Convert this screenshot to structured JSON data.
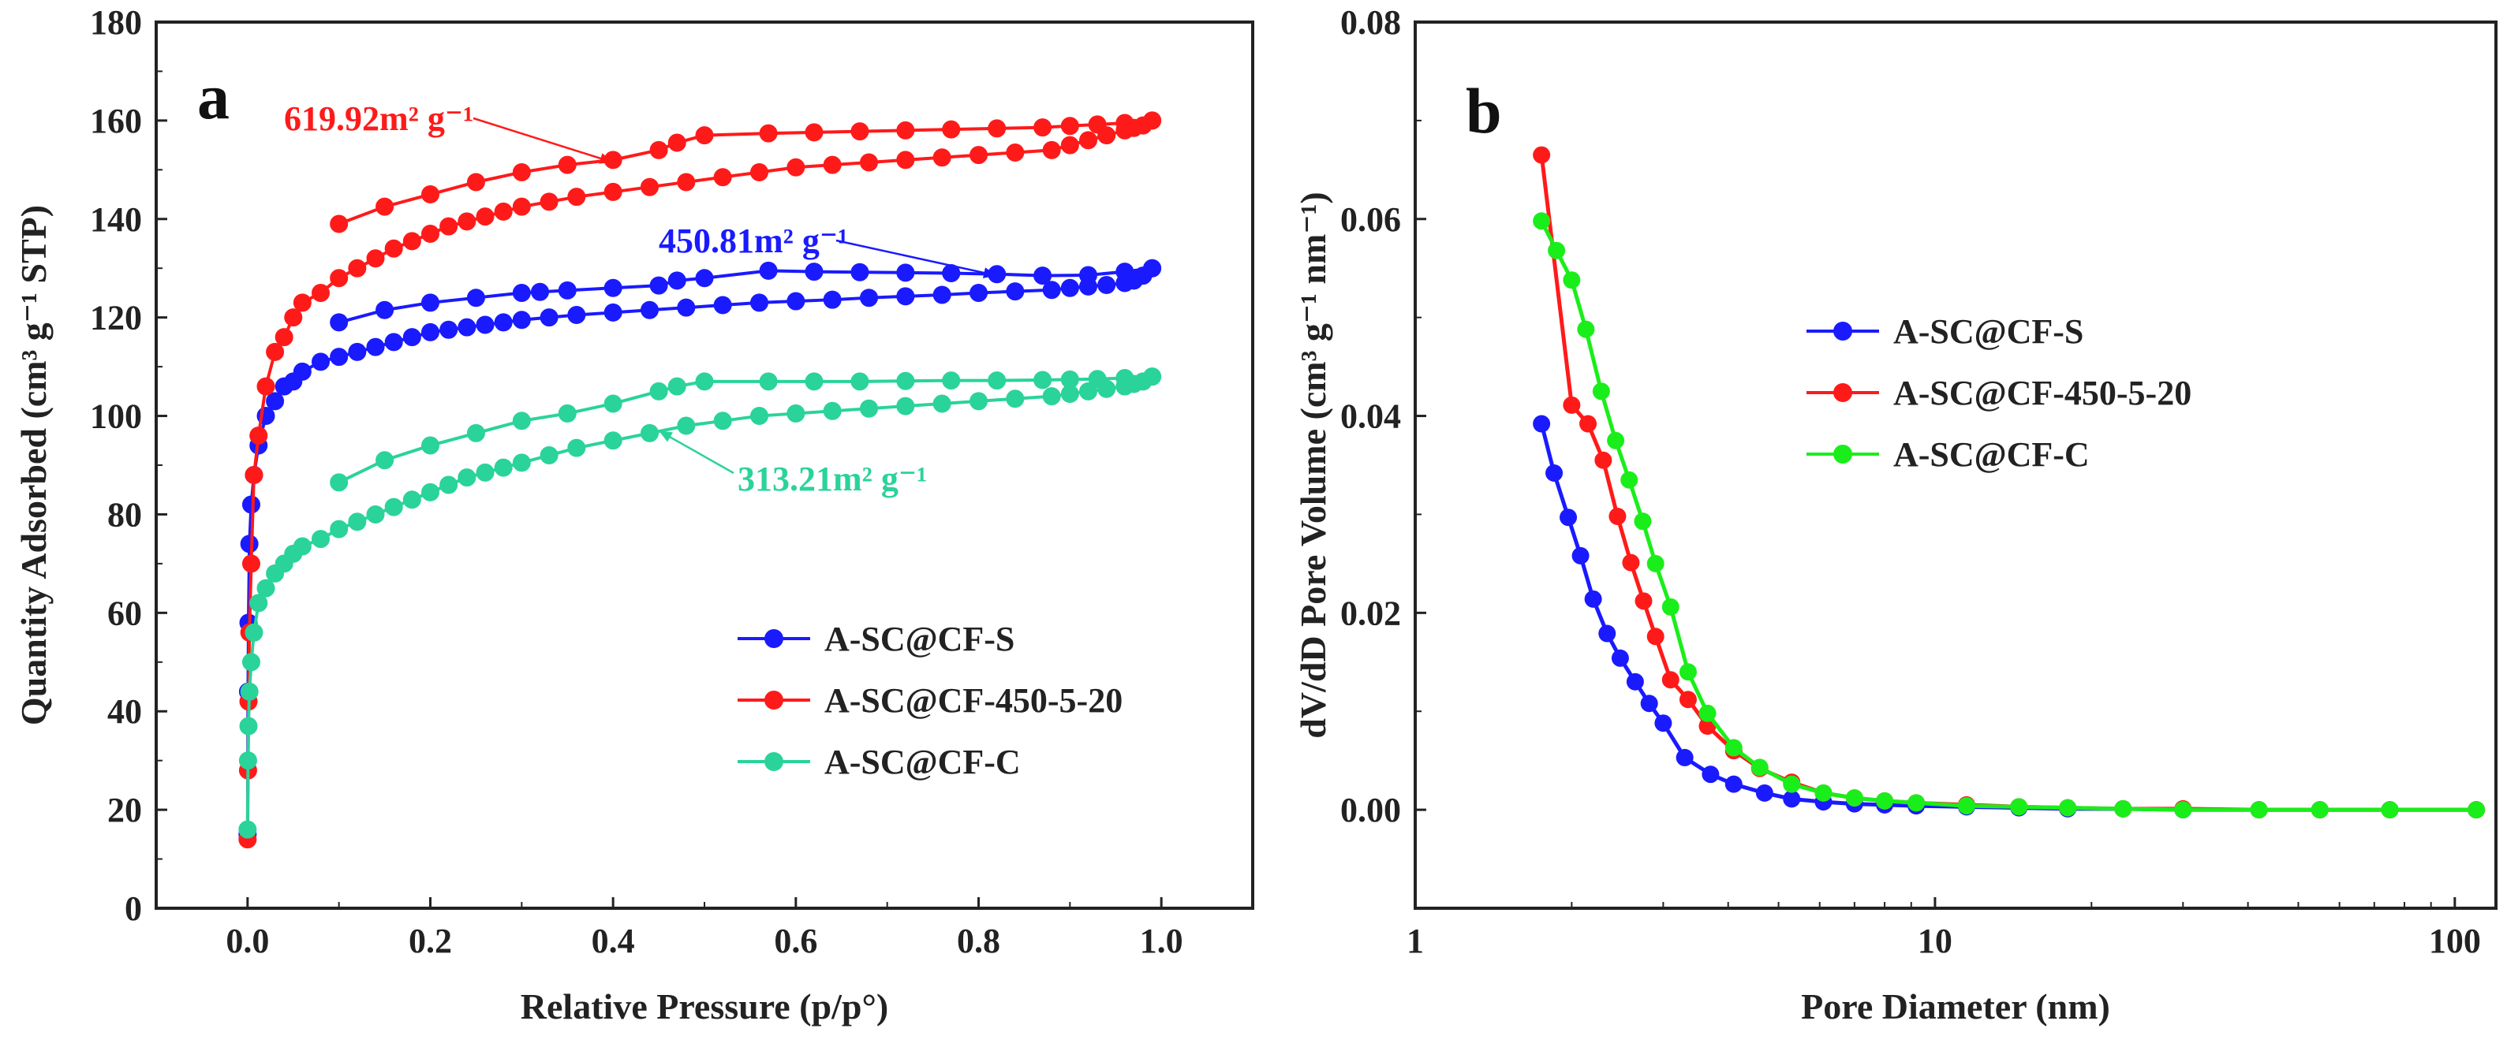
{
  "chart_data": [
    {
      "panel": "a",
      "type": "line",
      "xlabel": "Relative Pressure (p/p°)",
      "ylabel": "Quantity Adsorbed (cm³ g⁻¹ STP)",
      "xlim": [
        -0.1,
        1.1
      ],
      "ylim": [
        0,
        180
      ],
      "xticks": [
        0.0,
        0.2,
        0.4,
        0.6,
        0.8,
        1.0
      ],
      "xtick_labels": [
        "0.0",
        "0.2",
        "0.4",
        "0.6",
        "0.8",
        "1.0"
      ],
      "yticks": [
        0,
        20,
        40,
        60,
        80,
        100,
        120,
        140,
        160,
        180
      ],
      "ytick_labels": [
        "0",
        "20",
        "40",
        "60",
        "80",
        "100",
        "120",
        "140",
        "160",
        "180"
      ],
      "legend_position": "lower-right",
      "series": [
        {
          "name": "A-SC@CF-S",
          "color": "#1a1aff",
          "adsorption": {
            "x": [
              0.0,
              0.0005,
              0.001,
              0.002,
              0.004,
              0.007,
              0.012,
              0.02,
              0.03,
              0.04,
              0.05,
              0.06,
              0.08,
              0.1,
              0.12,
              0.14,
              0.16,
              0.18,
              0.2,
              0.22,
              0.24,
              0.26,
              0.28,
              0.3,
              0.33,
              0.36,
              0.4,
              0.44,
              0.48,
              0.52,
              0.56,
              0.6,
              0.64,
              0.68,
              0.72,
              0.76,
              0.8,
              0.84,
              0.88,
              0.9,
              0.92,
              0.94,
              0.96,
              0.97,
              0.98,
              0.99
            ],
            "y": [
              15,
              44,
              58,
              74,
              82,
              88,
              94,
              100,
              103,
              106,
              107,
              109,
              111,
              112,
              113,
              114,
              115,
              116,
              117,
              117.5,
              118,
              118.5,
              119,
              119.5,
              120,
              120.5,
              121,
              121.5,
              122,
              122.5,
              123,
              123.3,
              123.6,
              124,
              124.3,
              124.6,
              125,
              125.3,
              125.6,
              126,
              126.3,
              126.6,
              127,
              127.5,
              128.5,
              130
            ]
          },
          "desorption": {
            "x": [
              0.99,
              0.96,
              0.92,
              0.87,
              0.82,
              0.77,
              0.72,
              0.67,
              0.62,
              0.57,
              0.5,
              0.47,
              0.45,
              0.4,
              0.35,
              0.32,
              0.3,
              0.25,
              0.2,
              0.15,
              0.1
            ],
            "y": [
              130,
              129.3,
              128.6,
              128.5,
              128.8,
              129,
              129.1,
              129.2,
              129.3,
              129.5,
              128,
              127.5,
              126.5,
              126,
              125.5,
              125.2,
              125,
              124,
              123,
              121.5,
              119
            ]
          }
        },
        {
          "name": "A-SC@CF-450-5-20",
          "color": "#ff1a1a",
          "adsorption": {
            "x": [
              0.0,
              0.0005,
              0.001,
              0.002,
              0.004,
              0.007,
              0.012,
              0.02,
              0.03,
              0.04,
              0.05,
              0.06,
              0.08,
              0.1,
              0.12,
              0.14,
              0.16,
              0.18,
              0.2,
              0.22,
              0.24,
              0.26,
              0.28,
              0.3,
              0.33,
              0.36,
              0.4,
              0.44,
              0.48,
              0.52,
              0.56,
              0.6,
              0.64,
              0.68,
              0.72,
              0.76,
              0.8,
              0.84,
              0.88,
              0.9,
              0.92,
              0.94,
              0.96,
              0.97,
              0.98,
              0.99
            ],
            "y": [
              14,
              28,
              42,
              56,
              70,
              88,
              96,
              106,
              113,
              116,
              120,
              123,
              125,
              128,
              130,
              132,
              134,
              135.5,
              137,
              138.5,
              139.5,
              140.5,
              141.5,
              142.5,
              143.5,
              144.5,
              145.5,
              146.5,
              147.5,
              148.5,
              149.5,
              150.5,
              151,
              151.5,
              152,
              152.5,
              153,
              153.5,
              154,
              155,
              156,
              157,
              158,
              158.5,
              159,
              160
            ]
          },
          "desorption": {
            "x": [
              0.99,
              0.96,
              0.93,
              0.9,
              0.87,
              0.82,
              0.77,
              0.72,
              0.67,
              0.62,
              0.57,
              0.5,
              0.47,
              0.45,
              0.4,
              0.35,
              0.3,
              0.25,
              0.2,
              0.15,
              0.1
            ],
            "y": [
              160,
              159.5,
              159.2,
              158.9,
              158.6,
              158.4,
              158.2,
              158,
              157.8,
              157.6,
              157.4,
              157,
              155.5,
              154,
              152,
              151,
              149.5,
              147.5,
              145,
              142.5,
              139
            ]
          }
        },
        {
          "name": "A-SC@CF-C",
          "color": "#2ad39a",
          "adsorption": {
            "x": [
              0.0,
              0.0005,
              0.001,
              0.002,
              0.004,
              0.007,
              0.012,
              0.02,
              0.03,
              0.04,
              0.05,
              0.06,
              0.08,
              0.1,
              0.12,
              0.14,
              0.16,
              0.18,
              0.2,
              0.22,
              0.24,
              0.26,
              0.28,
              0.3,
              0.33,
              0.36,
              0.4,
              0.44,
              0.48,
              0.52,
              0.56,
              0.6,
              0.64,
              0.68,
              0.72,
              0.76,
              0.8,
              0.84,
              0.88,
              0.9,
              0.92,
              0.94,
              0.96,
              0.97,
              0.98,
              0.99
            ],
            "y": [
              16,
              30,
              37,
              44,
              50,
              56,
              62,
              65,
              68,
              70,
              72,
              73.5,
              75,
              77,
              78.5,
              80,
              81.5,
              83,
              84.5,
              86,
              87.5,
              88.5,
              89.5,
              90.5,
              92,
              93.5,
              95,
              96.5,
              98,
              99,
              100,
              100.5,
              101,
              101.5,
              102,
              102.5,
              103,
              103.5,
              104,
              104.5,
              105,
              105.5,
              106,
              106.5,
              107,
              108
            ]
          },
          "desorption": {
            "x": [
              0.99,
              0.96,
              0.93,
              0.9,
              0.87,
              0.82,
              0.77,
              0.72,
              0.67,
              0.62,
              0.57,
              0.5,
              0.47,
              0.45,
              0.4,
              0.35,
              0.3,
              0.25,
              0.2,
              0.15,
              0.1
            ],
            "y": [
              108,
              107.7,
              107.5,
              107.4,
              107.3,
              107.2,
              107.2,
              107.1,
              107,
              107,
              107,
              107,
              106,
              105,
              102.5,
              100.5,
              99,
              96.5,
              94,
              91,
              86.5
            ]
          }
        }
      ],
      "annotations": [
        {
          "text": "619.92m² g⁻¹",
          "color": "#ff1a1a",
          "target": [
            0.4,
            151.5
          ]
        },
        {
          "text": "450.81m² g⁻¹",
          "color": "#1a1aff",
          "target": [
            0.82,
            128.5
          ]
        },
        {
          "text": "313.21m² g⁻¹",
          "color": "#2ad39a",
          "target": [
            0.45,
            97
          ]
        }
      ]
    },
    {
      "panel": "b",
      "type": "line",
      "xscale": "log",
      "xlabel": "Pore Diameter (nm)",
      "ylabel": "dV/dD Pore Volume (cm³ g⁻¹ nm⁻¹)",
      "xlim": [
        1,
        120
      ],
      "ylim": [
        -0.01,
        0.08
      ],
      "xticks": [
        1,
        10,
        100
      ],
      "xtick_labels": [
        "1",
        "10",
        "100"
      ],
      "yticks": [
        0.0,
        0.02,
        0.04,
        0.06,
        0.08
      ],
      "ytick_labels": [
        "0.00",
        "0.02",
        "0.04",
        "0.06",
        "0.08"
      ],
      "legend_position": "upper-center",
      "series": [
        {
          "name": "A-SC@CF-S",
          "color": "#1a1aff",
          "x": [
            1.75,
            1.85,
            1.97,
            2.08,
            2.2,
            2.34,
            2.48,
            2.65,
            2.82,
            3.0,
            3.3,
            3.7,
            4.1,
            4.7,
            5.3,
            6.1,
            7.0,
            8.0,
            9.2,
            11.5,
            14.5,
            18,
            23,
            30,
            42,
            55,
            75,
            110
          ],
          "y": [
            0.0392,
            0.0342,
            0.0297,
            0.0258,
            0.0214,
            0.0179,
            0.0154,
            0.013,
            0.0108,
            0.0088,
            0.0053,
            0.0036,
            0.0026,
            0.0017,
            0.0011,
            0.0008,
            0.0006,
            0.0005,
            0.0004,
            0.0003,
            0.0002,
            0.0001,
            0.0001,
            0.0,
            0.0,
            0.0,
            0.0,
            0.0
          ]
        },
        {
          "name": "A-SC@CF-450-5-20",
          "color": "#ff1a1a",
          "x": [
            1.75,
            2.0,
            2.15,
            2.3,
            2.45,
            2.6,
            2.75,
            2.9,
            3.1,
            3.35,
            3.65,
            4.1,
            4.6,
            5.3,
            6.1,
            7.0,
            8.0,
            9.2,
            11.5,
            14.5,
            18,
            23,
            30,
            42,
            55,
            75,
            110
          ],
          "y": [
            0.0665,
            0.0411,
            0.0392,
            0.0355,
            0.0298,
            0.0251,
            0.0212,
            0.0176,
            0.0132,
            0.0112,
            0.0085,
            0.006,
            0.0042,
            0.0028,
            0.0017,
            0.0012,
            0.0009,
            0.0007,
            0.0005,
            0.0003,
            0.0002,
            0.0001,
            0.0001,
            0.0,
            0.0,
            0.0,
            0.0
          ]
        },
        {
          "name": "A-SC@CF-C",
          "color": "#1aee1a",
          "x": [
            1.75,
            1.87,
            2.0,
            2.13,
            2.28,
            2.43,
            2.58,
            2.74,
            2.9,
            3.1,
            3.35,
            3.65,
            4.1,
            4.6,
            5.3,
            6.1,
            7.0,
            8.0,
            9.2,
            11.5,
            14.5,
            18,
            23,
            30,
            42,
            55,
            75,
            110
          ],
          "y": [
            0.0598,
            0.0568,
            0.0538,
            0.0488,
            0.0425,
            0.0375,
            0.0335,
            0.0293,
            0.025,
            0.0206,
            0.014,
            0.0098,
            0.0063,
            0.0043,
            0.0026,
            0.0017,
            0.0012,
            0.0009,
            0.0007,
            0.0004,
            0.0003,
            0.0002,
            0.0001,
            0.0,
            0.0,
            0.0,
            0.0,
            0.0
          ]
        }
      ]
    }
  ]
}
